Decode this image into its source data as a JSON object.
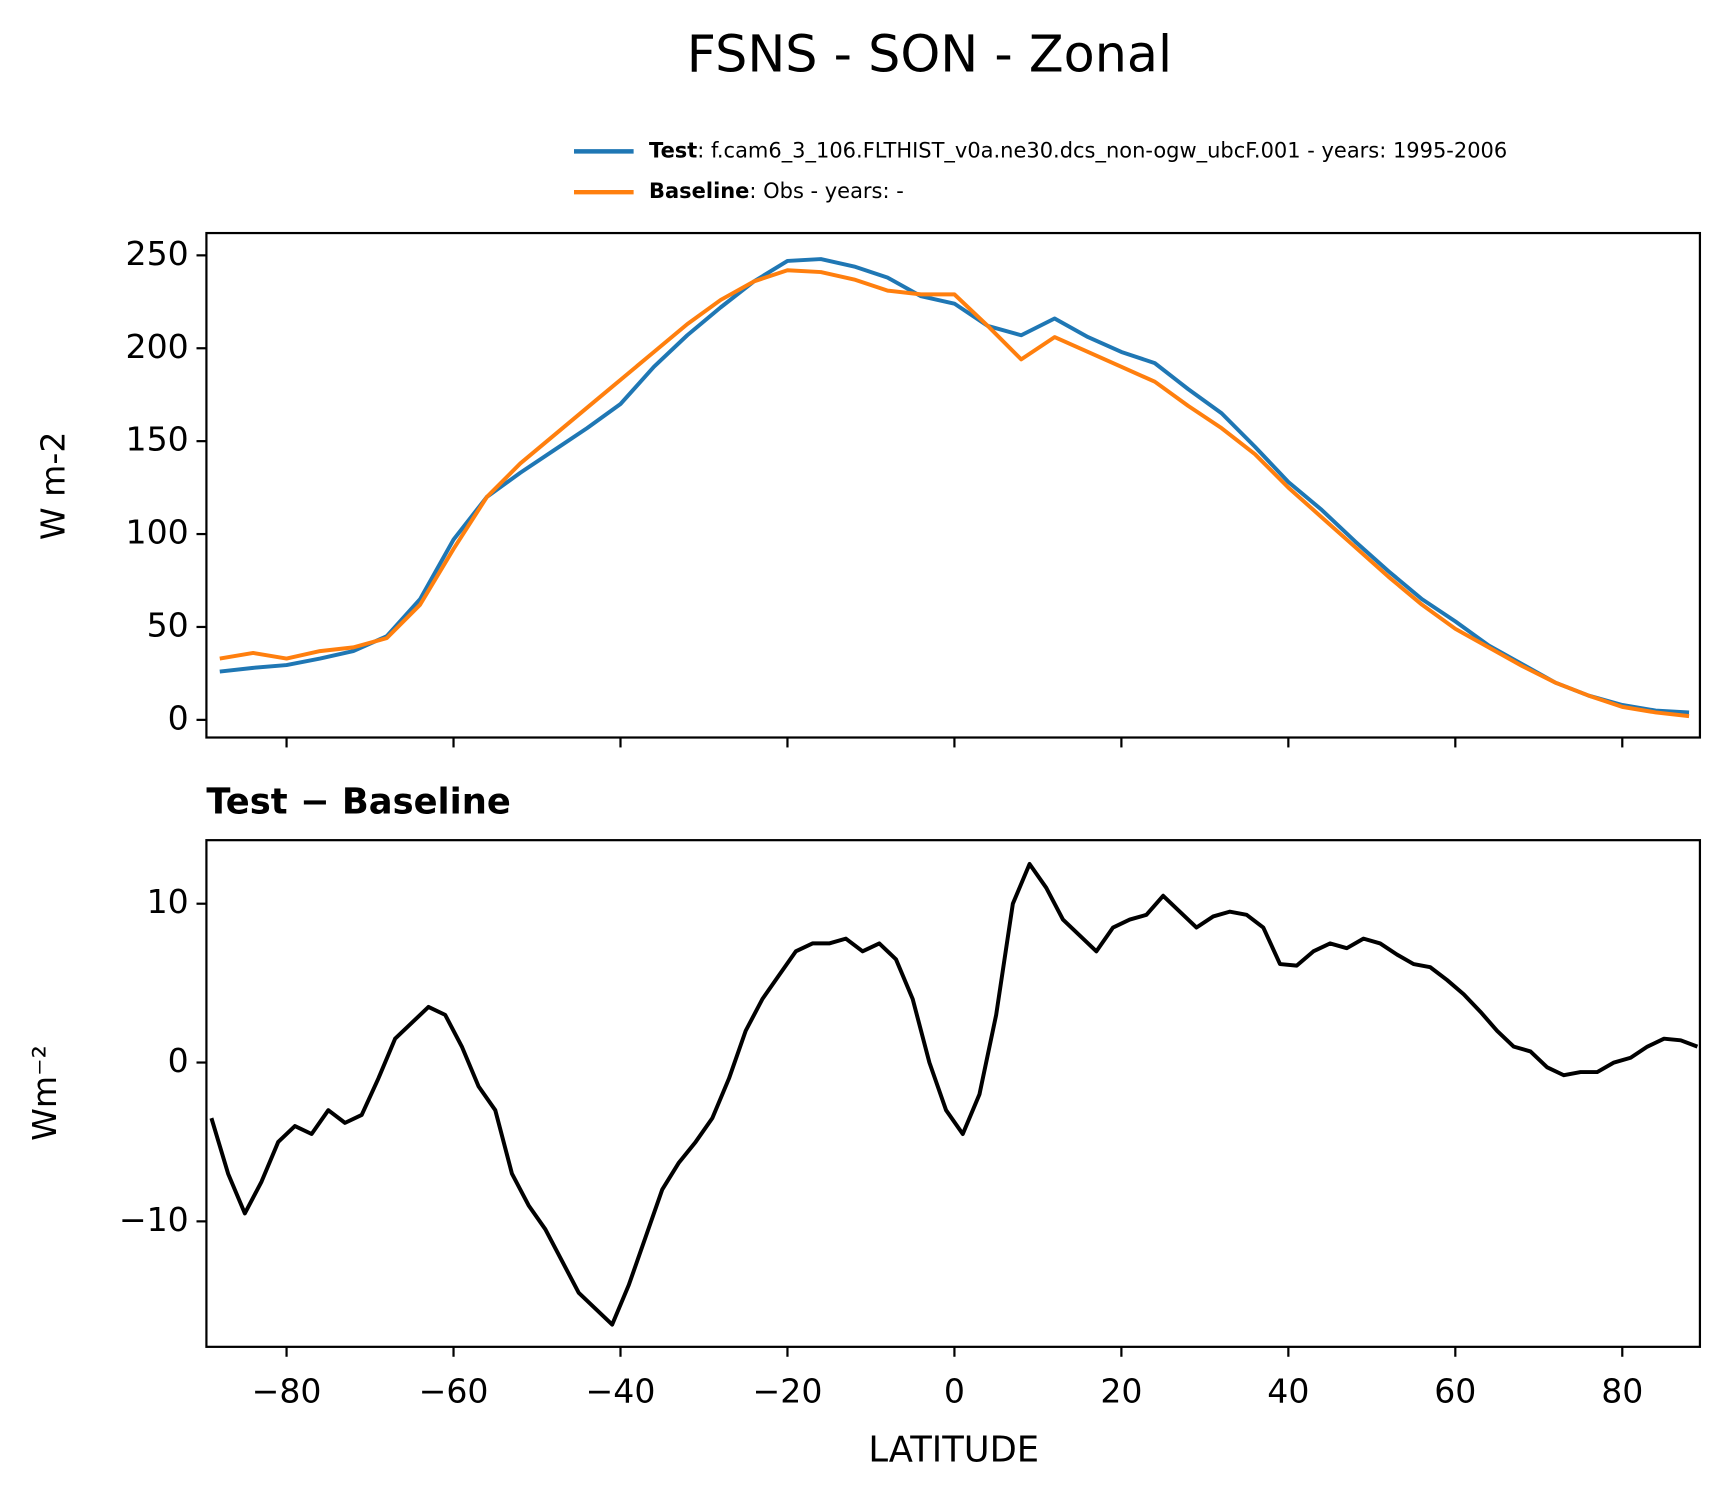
{
  "chart_data": [
    {
      "type": "line",
      "title": "FSNS - SON - Zonal",
      "y_label": "W m-2",
      "x": [
        -88,
        -84,
        -80,
        -76,
        -72,
        -68,
        -64,
        -60,
        -56,
        -52,
        -48,
        -44,
        -40,
        -36,
        -32,
        -28,
        -24,
        -20,
        -16,
        -12,
        -8,
        -4,
        0,
        4,
        8,
        12,
        16,
        20,
        24,
        28,
        32,
        36,
        40,
        44,
        48,
        52,
        56,
        60,
        64,
        68,
        72,
        76,
        80,
        84,
        88
      ],
      "xlim": [
        -89.6,
        89.3
      ],
      "ylim": [
        -9.5,
        262
      ],
      "yticks": [
        0,
        50,
        100,
        150,
        200,
        250
      ],
      "series": [
        {
          "name": "Test",
          "legend_label": ": f.cam6_3_106.FLTHIST_v0a.ne30.dcs_non-ogw_ubcF.001 - years: 1995-2006",
          "color": "#1f77b4",
          "values": [
            26,
            28,
            29.5,
            33,
            37,
            45,
            65,
            97,
            120,
            133,
            145,
            157,
            170,
            190,
            207,
            222,
            236,
            247,
            248,
            244,
            238,
            228,
            224,
            212,
            207,
            216,
            206,
            198,
            192,
            178,
            165,
            147,
            128,
            113,
            96,
            80,
            65,
            53,
            40,
            30,
            20,
            13,
            8,
            5,
            4
          ]
        },
        {
          "name": "Baseline",
          "legend_label": ": Obs - years: -",
          "color": "#ff7f0e",
          "values": [
            33,
            36,
            33,
            37,
            39,
            44,
            62,
            92,
            120,
            138,
            153,
            168,
            183,
            198,
            213,
            226,
            236,
            242,
            241,
            237,
            231,
            229,
            229,
            212,
            194,
            206,
            198,
            190,
            182,
            169,
            157,
            143,
            125,
            109,
            93,
            77,
            62,
            49,
            39,
            29,
            20,
            13,
            7,
            4,
            2
          ]
        }
      ]
    },
    {
      "type": "line",
      "title": "Test − Baseline",
      "x_label": "LATITUDE",
      "y_label": "Wm⁻²",
      "x": [
        -89,
        -87,
        -85,
        -83,
        -81,
        -79,
        -77,
        -75,
        -73,
        -71,
        -69,
        -67,
        -65,
        -63,
        -61,
        -59,
        -57,
        -55,
        -53,
        -51,
        -49,
        -47,
        -45,
        -43,
        -41,
        -39,
        -37,
        -35,
        -33,
        -31,
        -29,
        -27,
        -25,
        -23,
        -21,
        -19,
        -17,
        -15,
        -13,
        -11,
        -9,
        -7,
        -5,
        -3,
        -1,
        1,
        3,
        5,
        7,
        9,
        11,
        13,
        15,
        17,
        19,
        21,
        23,
        25,
        27,
        29,
        31,
        33,
        35,
        37,
        39,
        41,
        43,
        45,
        47,
        49,
        51,
        53,
        55,
        57,
        59,
        61,
        63,
        65,
        67,
        69,
        71,
        73,
        75,
        77,
        79,
        81,
        83,
        85,
        87,
        89
      ],
      "xlim": [
        -89.6,
        89.3
      ],
      "ylim": [
        -17.9,
        14.0
      ],
      "xticks": [
        {
          "value": -80,
          "label": "−80"
        },
        {
          "value": -60,
          "label": "−60"
        },
        {
          "value": -40,
          "label": "−40"
        },
        {
          "value": -20,
          "label": "−20"
        },
        0,
        20,
        40,
        60,
        80
      ],
      "yticks": [
        {
          "value": -10,
          "label": "−10"
        },
        0,
        10
      ],
      "series": [
        {
          "color": "#000000",
          "values": [
            -3.5,
            -7,
            -9.5,
            -7.5,
            -5,
            -4,
            -4.5,
            -3,
            -3.8,
            -3.3,
            -1,
            1.5,
            2.5,
            3.5,
            3,
            1,
            -1.5,
            -3,
            -7,
            -9,
            -10.5,
            -12.5,
            -14.5,
            -15.5,
            -16.5,
            -14,
            -11,
            -8,
            -6.3,
            -5,
            -3.5,
            -1,
            2,
            4,
            5.5,
            7,
            7.5,
            7.5,
            7.8,
            7,
            7.5,
            6.5,
            4,
            0,
            -3,
            -4.5,
            -2,
            3,
            10,
            12.5,
            11,
            9,
            8,
            7,
            8.5,
            9,
            9.3,
            10.5,
            9.5,
            8.5,
            9.2,
            9.5,
            9.3,
            8.5,
            6.2,
            6.1,
            7,
            7.5,
            7.2,
            7.8,
            7.5,
            6.8,
            6.2,
            6,
            5.2,
            4.3,
            3.2,
            2,
            1,
            0.7,
            -0.3,
            -0.8,
            -0.6,
            -0.6,
            0,
            0.3,
            1,
            1.5,
            1.4,
            1
          ]
        }
      ]
    }
  ]
}
